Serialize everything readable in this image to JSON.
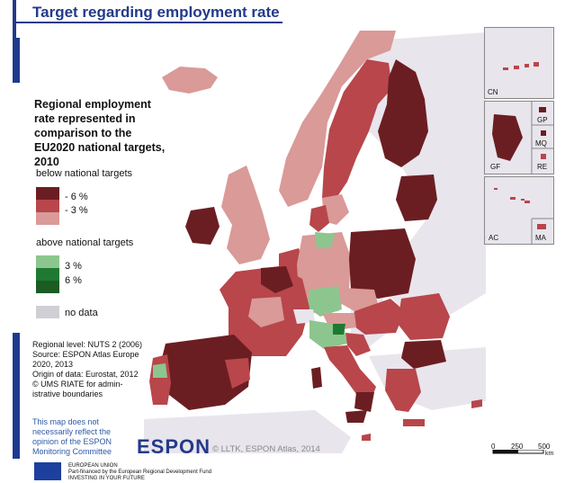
{
  "header": {
    "title": "Target regarding employment rate"
  },
  "legend": {
    "title": "Regional employment rate represented in comparison to the EU2020 national targets, 2010",
    "below_heading": "below national targets",
    "above_heading": "above national targets",
    "classes": [
      {
        "label": "- 6 %",
        "color": "#6b1e22"
      },
      {
        "label": "- 3 %",
        "color": "#b8464b"
      },
      {
        "label": "",
        "color": "#d99a98"
      },
      {
        "label": "3 %",
        "color": "#8cc68e"
      },
      {
        "label": "6 %",
        "color": "#1f7a31"
      },
      {
        "label": "no data",
        "color": "#cfcfd4"
      }
    ]
  },
  "source": {
    "lines": [
      "Regional level: NUTS 2 (2006)",
      "Source: ESPON Atlas Europe",
      "2020, 2013",
      "Origin of data: Eurostat, 2012",
      "© UMS RIATE for admin-",
      "istrative boundaries"
    ]
  },
  "disclaimer": {
    "lines": [
      "This map does not",
      "necessarily reflect the",
      "opinion of the ESPON",
      "Monitoring Committee"
    ]
  },
  "logo": {
    "text": "ESPON"
  },
  "copyright": "© LLTK, ESPON Atlas, 2014",
  "footer": {
    "lines": [
      "EUROPEAN UNION",
      "Part-financed by the European Regional Development Fund",
      "INVESTING IN YOUR FUTURE"
    ]
  },
  "scalebar": {
    "ticks": [
      "0",
      "250",
      "500"
    ],
    "unit": "km"
  },
  "insets": {
    "labels": [
      "CN",
      "GP",
      "MQ",
      "GF",
      "RE",
      "AC",
      "MA"
    ]
  },
  "colors": {
    "sea": "#ffffff",
    "non_eu": "#e9e5ec",
    "border": "#ffffff"
  }
}
